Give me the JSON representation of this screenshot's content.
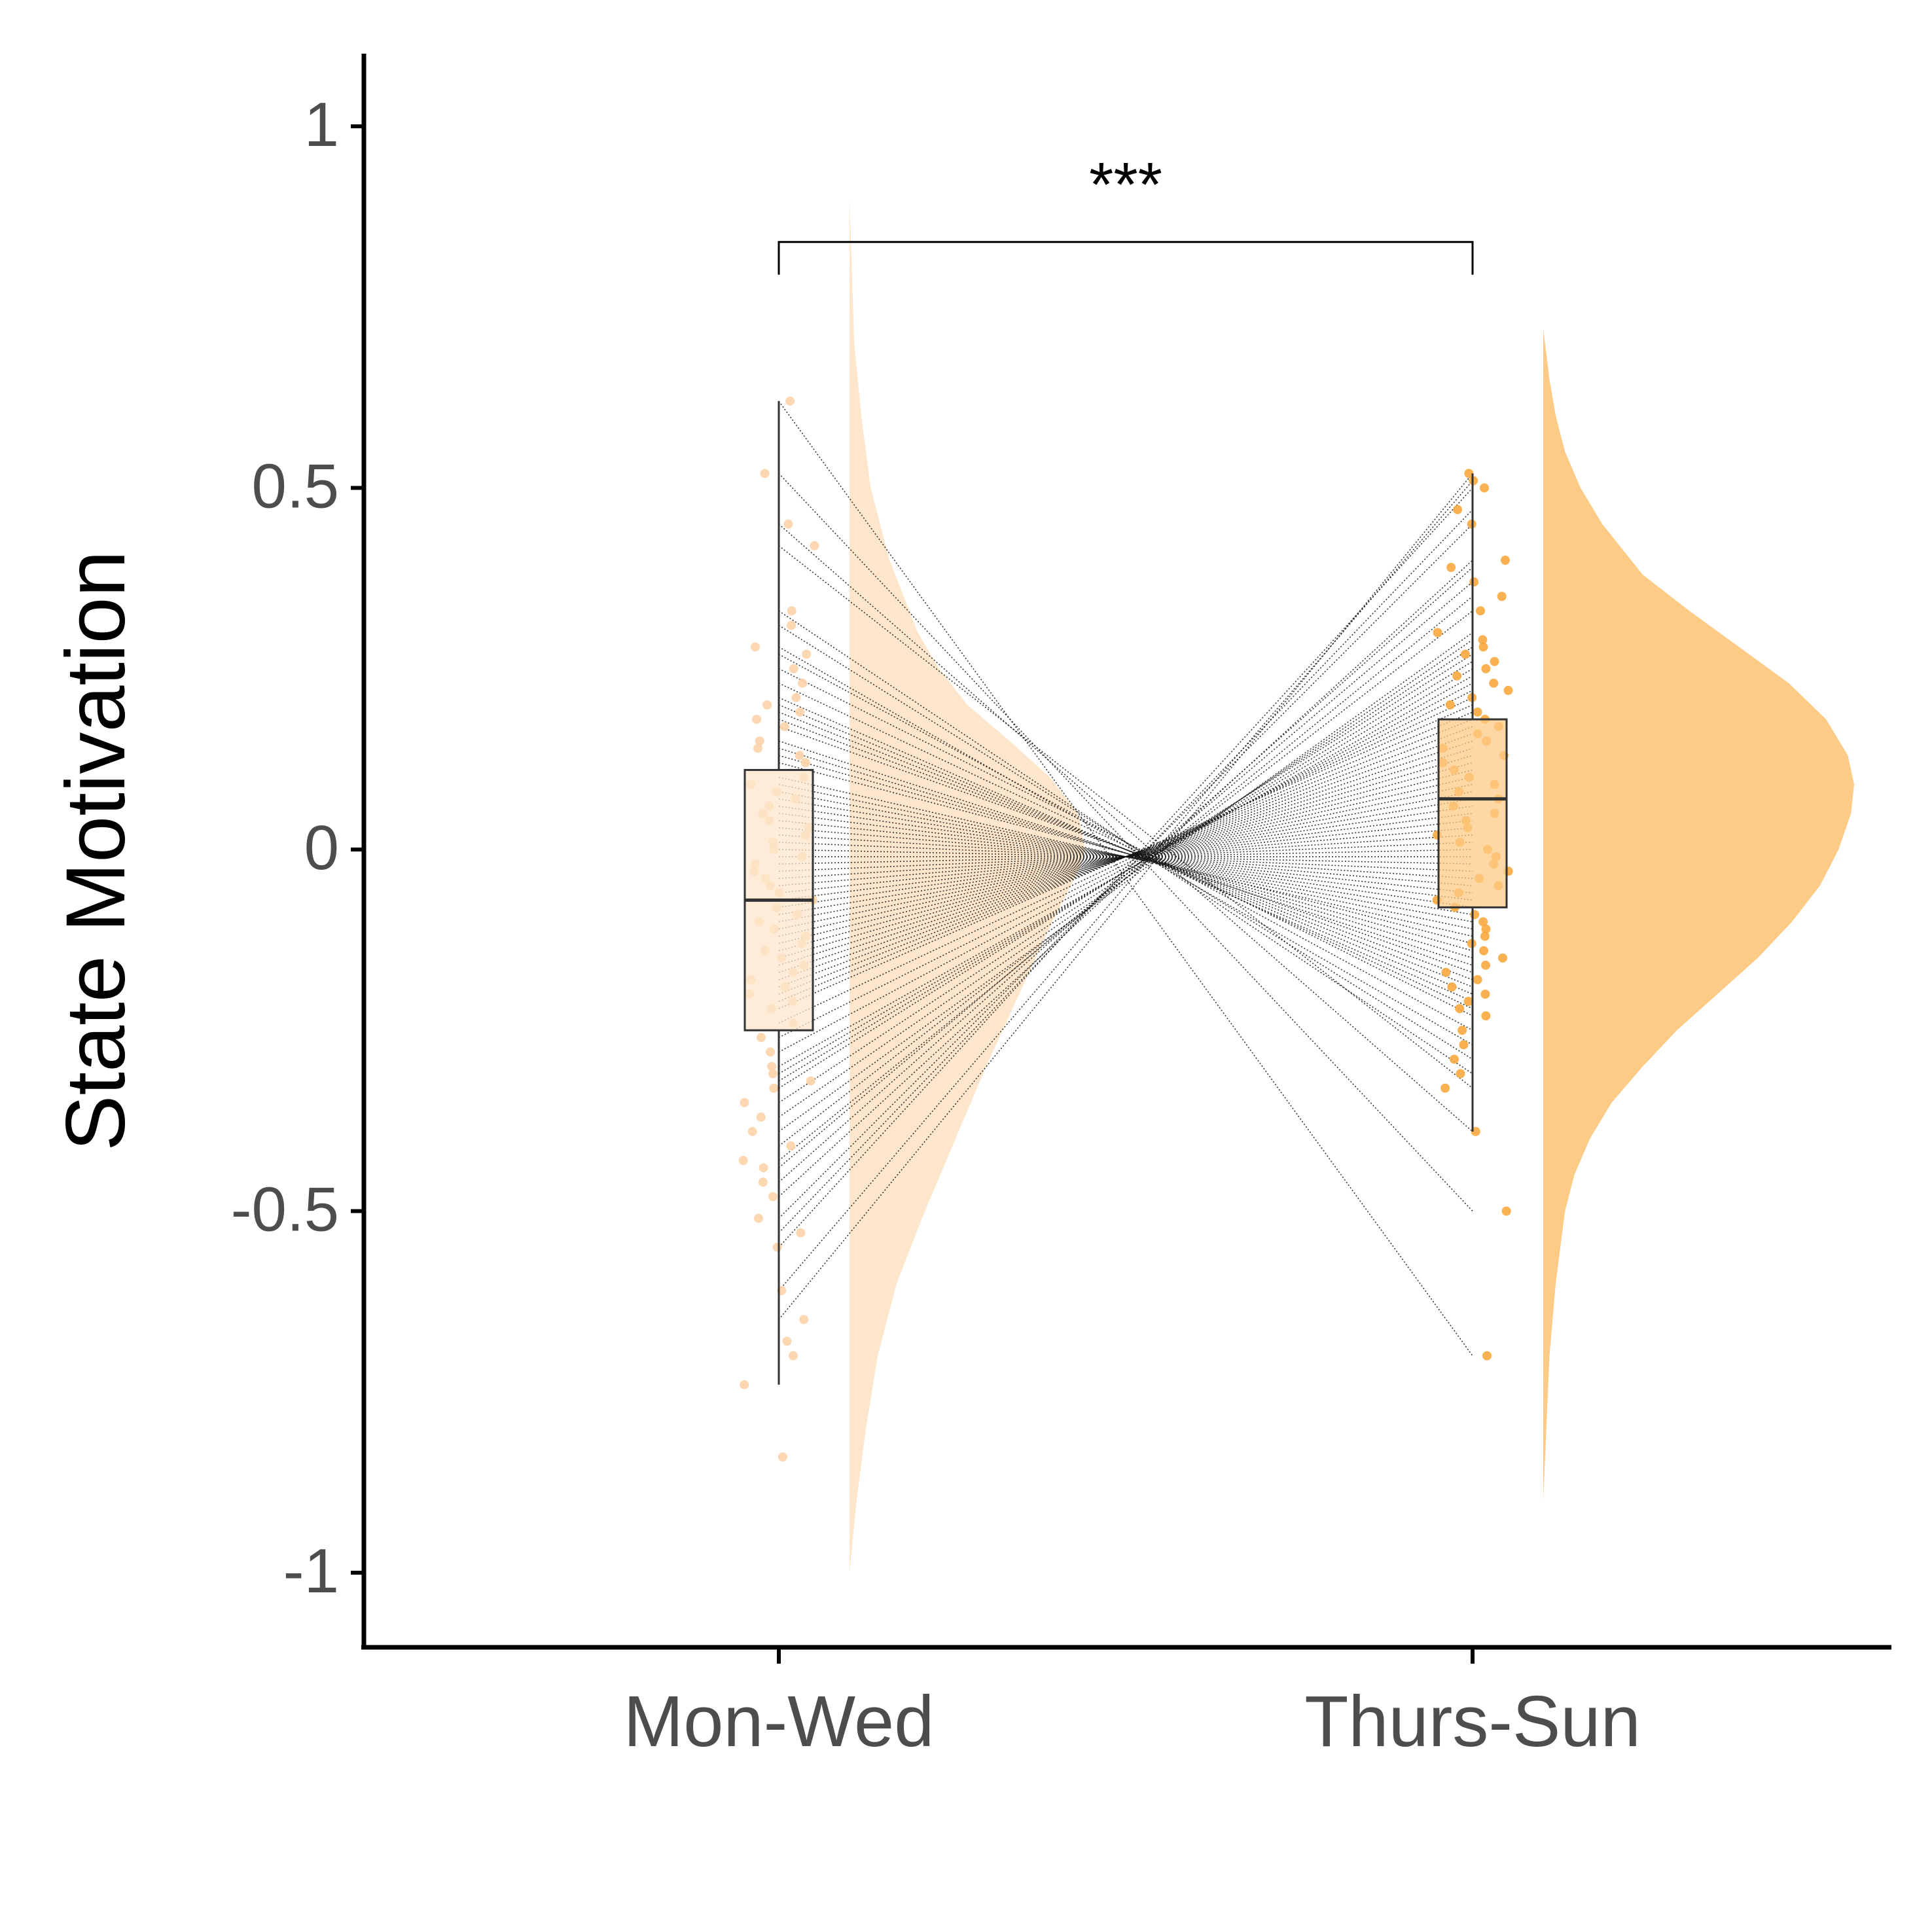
{
  "chart_data": {
    "type": "raincloud",
    "title": "",
    "xlabel": "",
    "ylabel": "State Motivation",
    "ylim": [
      -1.1,
      1.1
    ],
    "yticks": [
      1,
      0.5,
      0,
      -0.5,
      -1
    ],
    "ytick_labels": [
      "1",
      "0.5",
      "0",
      "-0.5",
      "-1"
    ],
    "categories": [
      "Mon-Wed",
      "Thurs-Sun"
    ],
    "grid": false,
    "legend": "none",
    "significance": {
      "label": "***",
      "between": [
        "Mon-Wed",
        "Thurs-Sun"
      ],
      "y": 0.84
    },
    "groups": [
      {
        "name": "Mon-Wed",
        "color": "#fde6cb",
        "point_color": "#fcd3a8",
        "box": {
          "min": -0.74,
          "q1": -0.25,
          "median": -0.07,
          "q3": 0.11,
          "max": 0.62
        },
        "density": [
          [
            -1.0,
            0.0
          ],
          [
            -0.9,
            0.03
          ],
          [
            -0.8,
            0.07
          ],
          [
            -0.7,
            0.12
          ],
          [
            -0.6,
            0.2
          ],
          [
            -0.5,
            0.32
          ],
          [
            -0.4,
            0.45
          ],
          [
            -0.3,
            0.58
          ],
          [
            -0.2,
            0.72
          ],
          [
            -0.1,
            0.86
          ],
          [
            -0.03,
            0.97
          ],
          [
            0.0,
            1.0
          ],
          [
            0.05,
            0.97
          ],
          [
            0.1,
            0.85
          ],
          [
            0.15,
            0.68
          ],
          [
            0.2,
            0.5
          ],
          [
            0.25,
            0.38
          ],
          [
            0.3,
            0.29
          ],
          [
            0.4,
            0.17
          ],
          [
            0.5,
            0.09
          ],
          [
            0.6,
            0.05
          ],
          [
            0.7,
            0.02
          ],
          [
            0.8,
            0.01
          ],
          [
            0.9,
            0.0
          ]
        ],
        "points": [
          0.62,
          0.52,
          0.45,
          0.42,
          0.33,
          0.31,
          0.28,
          0.27,
          0.25,
          0.23,
          0.21,
          0.2,
          0.19,
          0.18,
          0.17,
          0.15,
          0.14,
          0.13,
          0.12,
          0.1,
          0.09,
          0.08,
          0.07,
          0.06,
          0.05,
          0.04,
          0.03,
          0.02,
          0.01,
          0.0,
          -0.01,
          -0.02,
          -0.03,
          -0.04,
          -0.05,
          -0.06,
          -0.07,
          -0.08,
          -0.09,
          -0.1,
          -0.11,
          -0.12,
          -0.13,
          -0.14,
          -0.15,
          -0.16,
          -0.17,
          -0.18,
          -0.19,
          -0.2,
          -0.21,
          -0.22,
          -0.24,
          -0.26,
          -0.28,
          -0.3,
          -0.31,
          -0.32,
          -0.33,
          -0.35,
          -0.37,
          -0.39,
          -0.41,
          -0.43,
          -0.44,
          -0.46,
          -0.48,
          -0.51,
          -0.53,
          -0.55,
          -0.61,
          -0.65,
          -0.68,
          -0.7,
          -0.74,
          -0.84
        ]
      },
      {
        "name": "Thurs-Sun",
        "color": "#fdcb85",
        "point_color": "#f9a83e",
        "box": {
          "min": -0.39,
          "q1": -0.08,
          "median": 0.07,
          "q3": 0.18,
          "max": 0.52
        },
        "density": [
          [
            -0.9,
            0.0
          ],
          [
            -0.8,
            0.01
          ],
          [
            -0.7,
            0.02
          ],
          [
            -0.6,
            0.04
          ],
          [
            -0.5,
            0.07
          ],
          [
            -0.45,
            0.1
          ],
          [
            -0.4,
            0.15
          ],
          [
            -0.35,
            0.22
          ],
          [
            -0.3,
            0.32
          ],
          [
            -0.25,
            0.43
          ],
          [
            -0.2,
            0.56
          ],
          [
            -0.15,
            0.69
          ],
          [
            -0.1,
            0.8
          ],
          [
            -0.05,
            0.89
          ],
          [
            0.0,
            0.95
          ],
          [
            0.05,
            0.99
          ],
          [
            0.09,
            1.0
          ],
          [
            0.13,
            0.98
          ],
          [
            0.18,
            0.91
          ],
          [
            0.23,
            0.79
          ],
          [
            0.28,
            0.63
          ],
          [
            0.33,
            0.47
          ],
          [
            0.38,
            0.32
          ],
          [
            0.45,
            0.19
          ],
          [
            0.5,
            0.12
          ],
          [
            0.55,
            0.07
          ],
          [
            0.6,
            0.04
          ],
          [
            0.65,
            0.02
          ],
          [
            0.72,
            0.0
          ]
        ],
        "points": [
          0.52,
          0.51,
          0.5,
          0.47,
          0.45,
          0.4,
          0.39,
          0.37,
          0.35,
          0.33,
          0.3,
          0.29,
          0.28,
          0.27,
          0.26,
          0.25,
          0.24,
          0.23,
          0.22,
          0.21,
          0.2,
          0.19,
          0.18,
          0.17,
          0.16,
          0.15,
          0.14,
          0.13,
          0.12,
          0.11,
          0.1,
          0.09,
          0.08,
          0.07,
          0.06,
          0.05,
          0.04,
          0.03,
          0.02,
          0.01,
          0.0,
          -0.01,
          -0.02,
          -0.03,
          -0.04,
          -0.05,
          -0.06,
          -0.07,
          -0.08,
          -0.09,
          -0.1,
          -0.11,
          -0.12,
          -0.13,
          -0.14,
          -0.15,
          -0.16,
          -0.17,
          -0.18,
          -0.19,
          -0.2,
          -0.21,
          -0.22,
          -0.23,
          -0.25,
          -0.27,
          -0.29,
          -0.31,
          -0.33,
          -0.39,
          -0.5,
          -0.7
        ]
      }
    ]
  }
}
